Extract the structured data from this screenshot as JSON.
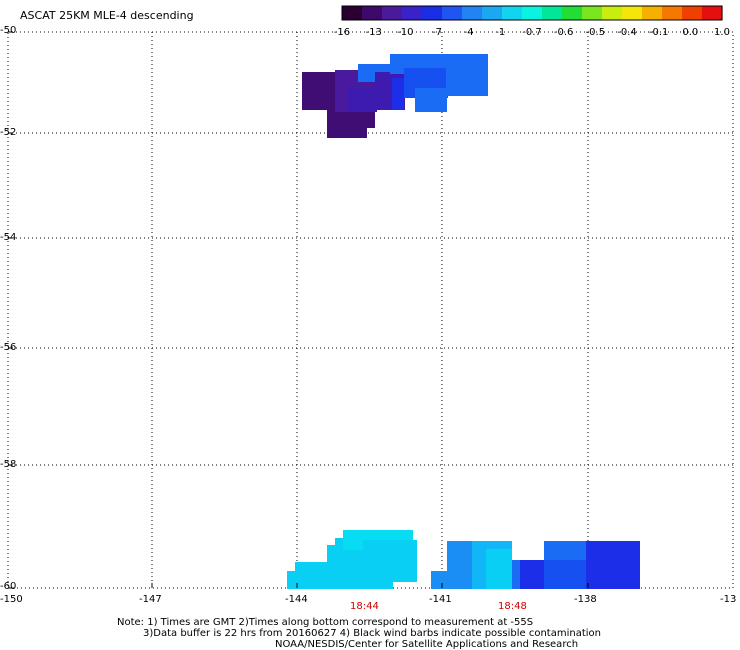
{
  "title": "ASCAT 25KM MLE-4 descending",
  "colorbar": {
    "colors": [
      "#2a0033",
      "#3d0a6b",
      "#4b1a9a",
      "#3a22c8",
      "#1a2ee6",
      "#1f55f2",
      "#2283f5",
      "#1aa8f2",
      "#12d4ee",
      "#0af2e0",
      "#00e69a",
      "#22dd33",
      "#7ae622",
      "#c8ee10",
      "#f5e60a",
      "#f5b000",
      "#f57800",
      "#f04000",
      "#e41010"
    ],
    "labels": [
      "-16",
      "-13",
      "-10",
      "-7",
      "-4",
      "-1",
      "-0.7",
      "-0.6",
      "-0.5",
      "-0.4",
      "-0.1",
      "0.0",
      "1.0"
    ]
  },
  "axes": {
    "lat_labels": [
      "-50",
      "-52",
      "-54",
      "-56",
      "-58",
      "-60"
    ],
    "lon_labels": [
      "-150",
      "-147",
      "-144",
      "-141",
      "-138",
      "-13"
    ]
  },
  "time_labels": [
    "18:44",
    "18:48"
  ],
  "cell_colors": {
    "dark": "#3f0d73",
    "purple": "#4a1a9e",
    "violet": "#3d1ab0",
    "blue_deep": "#1c2ee8",
    "blue": "#1650f0",
    "blue_mid": "#1a6cf5",
    "azure": "#1a8ef5",
    "sky": "#10b6f5",
    "cyan": "#0acff5",
    "cyan_light": "#08dcf2"
  },
  "notes": {
    "line1": "Note: 1) Times are GMT 2)Times along bottom correspond to measurement at -55S",
    "line2": "3)Data buffer is 22 hrs from 20160627 4) Black wind barbs indicate possible contamination",
    "line3": "NOAA/NESDIS/Center for Satellite Applications and Research"
  }
}
